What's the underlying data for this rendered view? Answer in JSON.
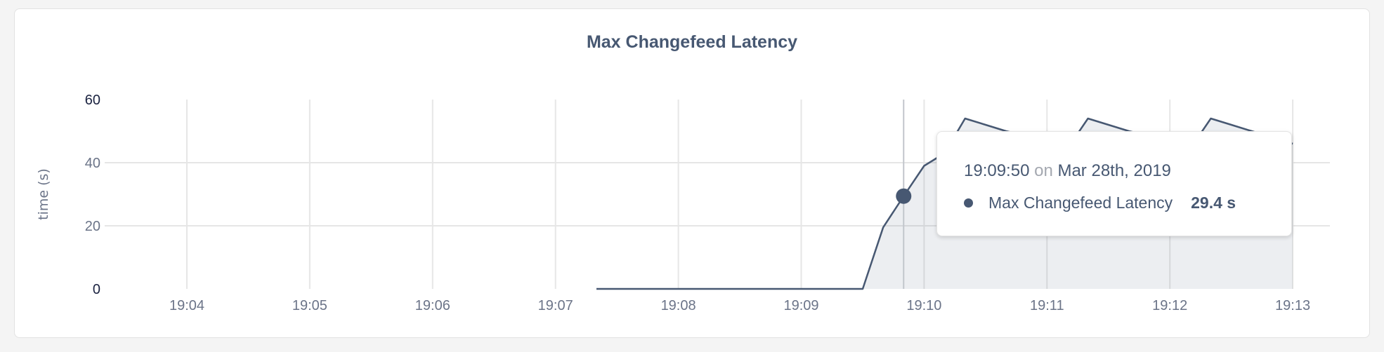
{
  "chart_data": {
    "type": "area",
    "title": "Max Changefeed Latency",
    "ylabel": "time (s)",
    "xlabel": "",
    "ylim": [
      0,
      60
    ],
    "yticks": [
      "0",
      "20",
      "40",
      "60"
    ],
    "xlim": [
      "19:03:40",
      "19:13:15"
    ],
    "xticks": [
      "19:04",
      "19:05",
      "19:06",
      "19:07",
      "19:08",
      "19:09",
      "19:10",
      "19:11",
      "19:12",
      "19:13"
    ],
    "grid": true,
    "series": [
      {
        "name": "Max Changefeed Latency",
        "color": "#475872",
        "x": [
          "19:07:20",
          "19:09:30",
          "19:09:40",
          "19:09:50",
          "19:10:00",
          "19:10:10",
          "19:10:20",
          "19:10:30",
          "19:10:40",
          "19:10:50",
          "19:11:00",
          "19:11:10",
          "19:11:20",
          "19:11:30",
          "19:11:40",
          "19:11:50",
          "19:12:00",
          "19:12:10",
          "19:12:20",
          "19:12:30",
          "19:12:40",
          "19:12:50",
          "19:13:00"
        ],
        "y": [
          0,
          0,
          19.5,
          29.4,
          39,
          43,
          54,
          52,
          50,
          48.5,
          46.5,
          44.5,
          54,
          52,
          50,
          48.5,
          46.5,
          44.5,
          54,
          52,
          50,
          48,
          46
        ]
      }
    ],
    "hover": {
      "x": "19:09:50",
      "value": 29.4
    }
  },
  "tooltip": {
    "time": "19:09:50",
    "on": "on",
    "date": "Mar 28th, 2019",
    "series_name": "Max Changefeed Latency",
    "value": "29.4 s"
  }
}
